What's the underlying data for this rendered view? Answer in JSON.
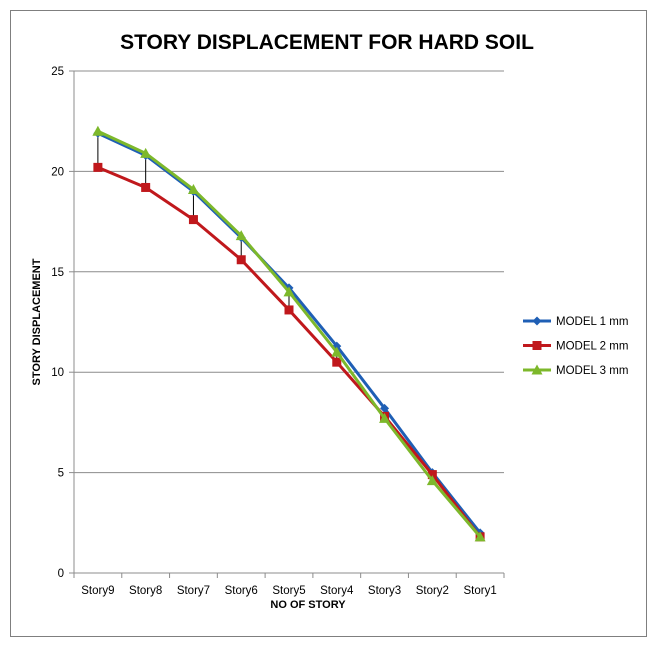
{
  "chart_data": {
    "type": "line",
    "title": "STORY DISPLACEMENT FOR HARD SOIL",
    "xlabel": "NO OF STORY",
    "ylabel": "STORY DISPLACEMENT",
    "categories": [
      "Story9",
      "Story8",
      "Story7",
      "Story6",
      "Story5",
      "Story4",
      "Story3",
      "Story2",
      "Story1"
    ],
    "ylim": [
      0,
      25
    ],
    "yticks": [
      "0",
      "5",
      "10",
      "15",
      "20",
      "25"
    ],
    "grid": true,
    "legend_position": "right",
    "series": [
      {
        "name": "MODEL 1 mm",
        "color": "#1f5fb5",
        "marker": "diamond",
        "values": [
          21.9,
          20.8,
          19.0,
          16.7,
          14.2,
          11.3,
          8.2,
          5.0,
          2.0
        ]
      },
      {
        "name": "MODEL 2 mm",
        "color": "#c0181c",
        "marker": "square",
        "values": [
          20.2,
          19.2,
          17.6,
          15.6,
          13.1,
          10.5,
          7.8,
          4.9,
          1.8
        ]
      },
      {
        "name": "MODEL 3 mm",
        "color": "#7db82b",
        "marker": "triangle",
        "values": [
          22.0,
          20.9,
          19.1,
          16.8,
          14.0,
          11.0,
          7.7,
          4.6,
          1.8
        ]
      }
    ]
  }
}
